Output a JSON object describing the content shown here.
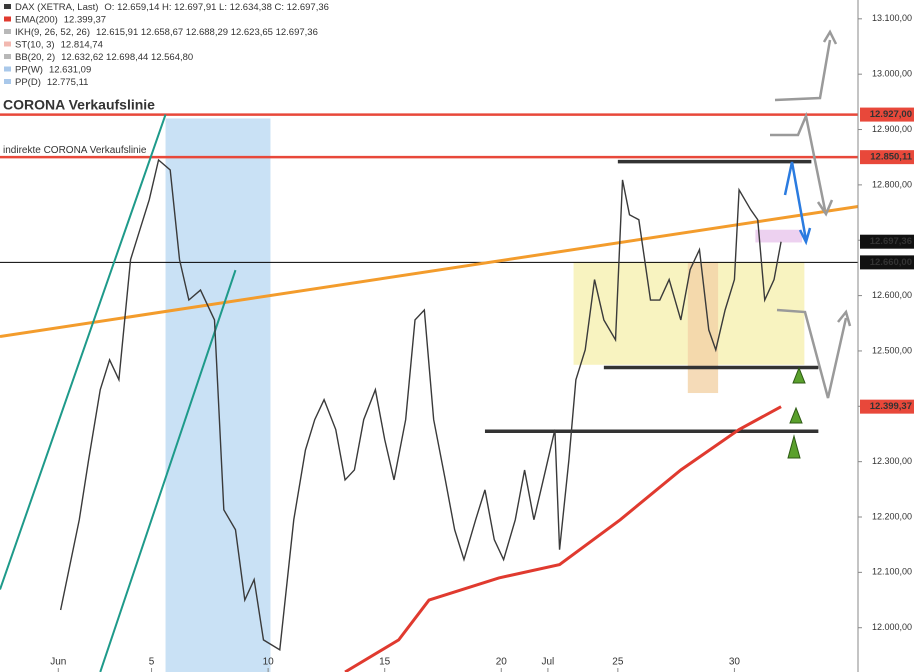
{
  "chart_data": {
    "type": "line",
    "xlim": [
      -1.5,
      35.3
    ],
    "ylim": [
      11920,
      13134
    ],
    "xticks": [
      {
        "value": 1,
        "label": "Jun"
      },
      5,
      10,
      15,
      20,
      {
        "value": 22,
        "label": "Jul"
      },
      25,
      30
    ],
    "yticks": [
      {
        "value": 12000,
        "label": "12.000,00"
      },
      {
        "value": 12100,
        "label": "12.100,00"
      },
      {
        "value": 12200,
        "label": "12.200,00"
      },
      {
        "value": 12300,
        "label": "12.300,00"
      },
      {
        "value": 12400,
        "label": "12.400,00"
      },
      {
        "value": 12500,
        "label": "12.500,00"
      },
      {
        "value": 12600,
        "label": "12.600,00"
      },
      {
        "value": 12700,
        "label": "12.700,00"
      },
      {
        "value": 12800,
        "label": "12.800,00"
      },
      {
        "value": 12900,
        "label": "12.900,00"
      },
      {
        "value": 13000,
        "label": "13.000,00"
      },
      {
        "value": 13100,
        "label": "13.100,00"
      }
    ],
    "series": [
      {
        "name": "DAX (XETRA, Last)",
        "text": "O: 12.659,14  H: 12.697,91  L: 12.634,38  C: 12.697,36",
        "color": "#3a3a3a",
        "x": [
          1.1,
          1.9,
          2.3,
          2.8,
          3.2,
          3.6,
          4.1,
          4.5,
          4.9,
          5.3,
          5.8,
          6.2,
          6.6,
          7.1,
          7.7,
          8.1,
          8.6,
          9.0,
          9.4,
          9.8,
          10.5,
          11.1,
          11.6,
          12.0,
          12.4,
          12.9,
          13.3,
          13.7,
          14.1,
          14.6,
          15.0,
          15.4,
          15.9,
          16.3,
          16.7,
          17.1,
          17.6,
          18.0,
          18.4,
          18.9,
          19.3,
          19.7,
          20.1,
          20.6,
          21.0,
          21.4,
          21.9,
          22.3,
          22.5,
          22.9,
          23.2,
          23.6,
          24.0,
          24.4,
          24.9,
          25.2,
          25.5,
          25.9,
          26.4,
          26.8,
          27.2,
          27.7,
          28.1,
          28.5,
          28.9,
          29.2,
          29.6,
          30.0,
          30.2,
          30.7,
          31.0,
          31.3,
          31.7,
          32.0
        ],
        "values": [
          12032,
          12195,
          12303,
          12430,
          12484,
          12448,
          12665,
          12719,
          12773,
          12845,
          12827,
          12665,
          12592,
          12610,
          12556,
          12213,
          12177,
          12050,
          12087,
          11978,
          11960,
          12195,
          12321,
          12376,
          12412,
          12358,
          12267,
          12285,
          12376,
          12430,
          12340,
          12267,
          12376,
          12556,
          12574,
          12376,
          12267,
          12177,
          12123,
          12195,
          12249,
          12159,
          12123,
          12195,
          12285,
          12195,
          12285,
          12358,
          12141,
          12303,
          12448,
          12502,
          12629,
          12556,
          12520,
          12809,
          12746,
          12737,
          12592,
          12592,
          12629,
          12556,
          12647,
          12683,
          12538,
          12502,
          12574,
          12629,
          12791,
          12755,
          12737,
          12592,
          12629,
          12697.36
        ]
      },
      {
        "name": "EMA(200)",
        "text": "12.399,37",
        "color": "#e03a2f",
        "x": [
          13.3,
          15.6,
          16.9,
          19.9,
          22.5,
          25.1,
          27.7,
          30.2,
          32.0
        ],
        "values": [
          11920,
          11978,
          12050,
          12090,
          12114,
          12195,
          12285,
          12358,
          12399.37
        ]
      }
    ],
    "indicators": [
      {
        "name": "IKH(9, 26, 52, 26)",
        "text": "12.615,91  12.658,67  12.688,29  12.623,65  12.697,36",
        "color": "#b8b8b8"
      },
      {
        "name": "ST(10, 3)",
        "text": "12.814,74",
        "color": "#f2b8b0"
      },
      {
        "name": "BB(20, 2)",
        "text": "12.632,62  12.698,44  12.564,80",
        "color": "#b8b8b8"
      },
      {
        "name": "PP(W)",
        "text": "12.631,09",
        "color": "#a9c8ea"
      },
      {
        "name": "PP(D)",
        "text": "12.775,11",
        "color": "#a9c8ea"
      }
    ],
    "hlines": [
      {
        "value": 12927,
        "label": "CORONA Verkaufslinie",
        "color": "#e8483a"
      },
      {
        "value": 12850.11,
        "label": "indirekte CORONA Verkaufslinie",
        "color": "#e8483a"
      },
      {
        "value": 12660,
        "color": "#000000"
      }
    ],
    "trendlines": [
      {
        "color": "#f39c2c",
        "x": [
          -1.5,
          35.3
        ],
        "values": [
          12526,
          12761
        ]
      },
      {
        "color": "#1e9a8a",
        "x": [
          -1.5,
          5.6
        ],
        "values": [
          12069,
          12927
        ]
      },
      {
        "color": "#1e9a8a",
        "x": [
          2.8,
          8.6
        ],
        "values": [
          11920,
          12646
        ]
      }
    ],
    "levels": [
      {
        "x": [
          25.0,
          33.3
        ],
        "value": 12842
      },
      {
        "x": [
          24.4,
          33.6
        ],
        "value": 12470
      },
      {
        "x": [
          19.3,
          33.6
        ],
        "value": 12355
      }
    ],
    "zones": [
      {
        "x": [
          5.6,
          10.1
        ],
        "values": [
          11920,
          12920
        ],
        "color": "#bcd9f3"
      },
      {
        "x": [
          23.1,
          33.0
        ],
        "values": [
          12660,
          12475
        ],
        "color": "#f6f0b0"
      },
      {
        "x": [
          28.0,
          29.3
        ],
        "values": [
          12660,
          12424
        ],
        "color": "#f3d2a6"
      },
      {
        "x": [
          30.9,
          32.9
        ],
        "values": [
          12719,
          12696
        ],
        "color": "#e8c6ec"
      }
    ],
    "price_labels": [
      {
        "value": 12927,
        "label": "12.927,00",
        "color": "#e8483a"
      },
      {
        "value": 12850.11,
        "label": "12.850,11",
        "color": "#e8483a"
      },
      {
        "value": 12697.36,
        "label": "12.697,36",
        "color": "#111111"
      },
      {
        "value": 12660,
        "label": "12.660,00",
        "color": "#111111"
      },
      {
        "value": 12399.37,
        "label": "12.399,37",
        "color": "#e8483a"
      }
    ]
  }
}
